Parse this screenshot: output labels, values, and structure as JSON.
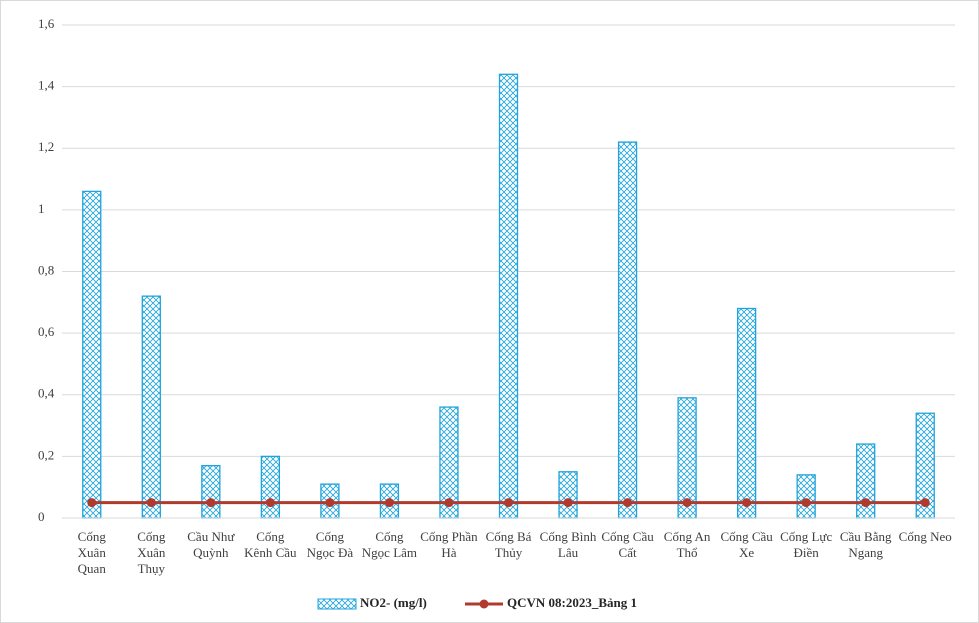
{
  "chart_data": {
    "type": "bar-line",
    "categories": [
      "Cống Xuân Quan",
      "Cống Xuân Thụy",
      "Cầu Như Quỳnh",
      "Cống Kênh Cầu",
      "Cống Ngọc Đà",
      "Cống Ngọc Lâm",
      "Cống Phần Hà",
      "Cống Bá Thủy",
      "Cống Bình Lâu",
      "Cống Cầu Cất",
      "Cống An Thổ",
      "Cống Cầu Xe",
      "Cống Lực Điền",
      "Cầu Bằng Ngang",
      "Cống Neo"
    ],
    "series": [
      {
        "name": "NO2- (mg/l)",
        "type": "bar",
        "color": "#1fa3dc",
        "values": [
          1.06,
          0.72,
          0.17,
          0.2,
          0.11,
          0.11,
          0.36,
          1.44,
          0.15,
          1.22,
          0.39,
          0.68,
          0.14,
          0.24,
          0.34
        ]
      },
      {
        "name": "QCVN 08:2023_Bảng 1",
        "type": "line",
        "color": "#b03a2e",
        "values": [
          0.05,
          0.05,
          0.05,
          0.05,
          0.05,
          0.05,
          0.05,
          0.05,
          0.05,
          0.05,
          0.05,
          0.05,
          0.05,
          0.05,
          0.05
        ]
      }
    ],
    "ylim": [
      0,
      1.6
    ],
    "yticks": [
      0,
      {
        "value": 0.2,
        "label": "0,2"
      },
      {
        "value": 0.4,
        "label": "0,4"
      },
      {
        "value": 0.6,
        "label": "0,6"
      },
      {
        "value": 0.8,
        "label": "0,8"
      },
      1,
      {
        "value": 1.2,
        "label": "1,2"
      },
      {
        "value": 1.4,
        "label": "1,4"
      },
      {
        "value": 1.6,
        "label": "1,6"
      }
    ],
    "grid": true,
    "legend": "bottom"
  }
}
